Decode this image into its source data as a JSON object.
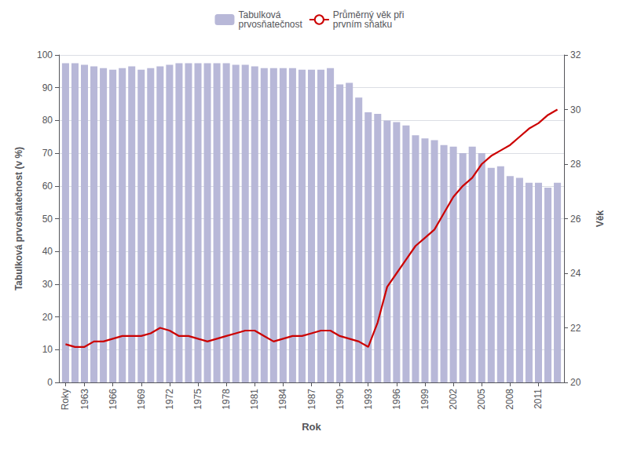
{
  "chart_data": {
    "type": "bar",
    "x": [
      1961,
      1962,
      1963,
      1964,
      1965,
      1966,
      1967,
      1968,
      1969,
      1970,
      1971,
      1972,
      1973,
      1974,
      1975,
      1976,
      1977,
      1978,
      1979,
      1980,
      1981,
      1982,
      1983,
      1984,
      1985,
      1986,
      1987,
      1988,
      1989,
      1990,
      1991,
      1992,
      1993,
      1994,
      1995,
      1996,
      1997,
      1998,
      1999,
      2000,
      2001,
      2002,
      2003,
      2004,
      2005,
      2006,
      2007,
      2008,
      2009,
      2010,
      2011,
      2012,
      2013
    ],
    "series": [
      {
        "name": "Tabulková\nprvosňatečnost",
        "type": "bar",
        "color": "#b8b8d8",
        "values": [
          97.5,
          97.5,
          97.0,
          96.5,
          96.0,
          95.5,
          96.0,
          96.5,
          95.5,
          96.0,
          96.5,
          97.0,
          97.5,
          97.5,
          97.5,
          97.5,
          97.5,
          97.5,
          97.0,
          97.0,
          96.5,
          96.0,
          96.0,
          96.0,
          96.0,
          95.5,
          95.5,
          95.5,
          96.0,
          91.0,
          91.5,
          87.0,
          82.5,
          82.0,
          80.0,
          79.5,
          78.5,
          75.5,
          74.5,
          74.0,
          72.5,
          72.0,
          70.0,
          72.0,
          70.0,
          65.5,
          66.0,
          63.0,
          62.5,
          61.0,
          61.0,
          59.5,
          61.0
        ]
      },
      {
        "name": "Průměrný věk při\nprvním sňatku",
        "type": "line",
        "color": "#cc0000",
        "axis": "y2",
        "values": [
          21.4,
          21.3,
          21.3,
          21.5,
          21.5,
          21.6,
          21.7,
          21.7,
          21.7,
          21.8,
          22.0,
          21.9,
          21.7,
          21.7,
          21.6,
          21.5,
          21.6,
          21.7,
          21.8,
          21.9,
          21.9,
          21.7,
          21.5,
          21.6,
          21.7,
          21.7,
          21.8,
          21.9,
          21.9,
          21.7,
          21.6,
          21.5,
          21.3,
          22.2,
          23.5,
          24.0,
          24.5,
          25.0,
          25.3,
          25.6,
          26.2,
          26.8,
          27.2,
          27.5,
          28.0,
          28.3,
          28.5,
          28.7,
          29.0,
          29.3,
          29.5,
          29.8,
          30.0
        ]
      }
    ],
    "xlabel": "Rok",
    "ylabel": "Tabulková prvosňatečnost (v %)",
    "y2label": "Věk",
    "xlim": [
      1960.3,
      2013.7
    ],
    "xticks": [
      {
        "value": 1961,
        "label": "Roky"
      },
      1963,
      1966,
      1969,
      1972,
      1975,
      1978,
      1981,
      1984,
      1987,
      1990,
      1993,
      1996,
      1999,
      2002,
      2005,
      2008,
      2011
    ],
    "ylim": [
      0,
      100
    ],
    "yticks": [
      0,
      10,
      20,
      30,
      40,
      50,
      60,
      70,
      80,
      90,
      100
    ],
    "y2lim": [
      20,
      32
    ],
    "y2ticks": [
      20,
      22,
      24,
      26,
      28,
      30,
      32
    ],
    "grid": true,
    "legend": "top"
  }
}
